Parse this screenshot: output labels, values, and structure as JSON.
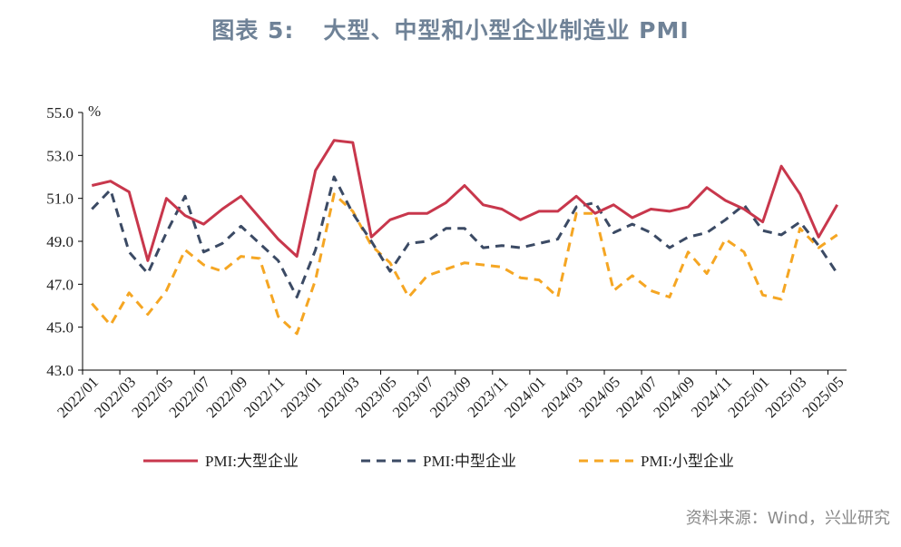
{
  "title_prefix": "图表 5:",
  "title_main": "大型、中型和小型企业制造业 PMI",
  "source": "资料来源：Wind，兴业研究",
  "chart_data": {
    "type": "line",
    "ylabel": "%",
    "ylim": [
      43.0,
      55.0
    ],
    "yticks": [
      "43.0",
      "45.0",
      "47.0",
      "49.0",
      "51.0",
      "53.0",
      "55.0"
    ],
    "x": [
      "2022/01",
      "2022/02",
      "2022/03",
      "2022/04",
      "2022/05",
      "2022/06",
      "2022/07",
      "2022/08",
      "2022/09",
      "2022/10",
      "2022/11",
      "2022/12",
      "2023/01",
      "2023/02",
      "2023/03",
      "2023/04",
      "2023/05",
      "2023/06",
      "2023/07",
      "2023/08",
      "2023/09",
      "2023/10",
      "2023/11",
      "2023/12",
      "2024/01",
      "2024/02",
      "2024/03",
      "2024/04",
      "2024/05",
      "2024/06",
      "2024/07",
      "2024/08",
      "2024/09",
      "2024/10",
      "2024/11",
      "2024/12",
      "2025/01",
      "2025/02",
      "2025/03",
      "2025/04",
      "2025/05"
    ],
    "xtick_labels": [
      "2022/01",
      "2022/03",
      "2022/05",
      "2022/07",
      "2022/09",
      "2022/11",
      "2023/01",
      "2023/03",
      "2023/05",
      "2023/07",
      "2023/09",
      "2023/11",
      "2024/01",
      "2024/03",
      "2024/05",
      "2024/07",
      "2024/09",
      "2024/11",
      "2025/01",
      "2025/03",
      "2025/05"
    ],
    "legend_position": "bottom",
    "series": [
      {
        "name": "PMI:大型企业",
        "color": "#c8374c",
        "dash": "solid",
        "values": [
          51.6,
          51.8,
          51.3,
          48.1,
          51.0,
          50.2,
          49.8,
          50.5,
          51.1,
          50.1,
          49.1,
          48.3,
          52.3,
          53.7,
          53.6,
          49.2,
          50.0,
          50.3,
          50.3,
          50.8,
          51.6,
          50.7,
          50.5,
          50.0,
          50.4,
          50.4,
          51.1,
          50.3,
          50.7,
          50.1,
          50.5,
          50.4,
          50.6,
          51.5,
          50.9,
          50.5,
          49.9,
          52.5,
          51.2,
          49.2,
          50.7
        ]
      },
      {
        "name": "PMI:中型企业",
        "color": "#3b4a64",
        "dash": "dashed",
        "values": [
          50.5,
          51.4,
          48.5,
          47.5,
          49.4,
          51.1,
          48.5,
          48.9,
          49.7,
          48.9,
          48.1,
          46.4,
          48.6,
          52.0,
          50.3,
          49.0,
          47.6,
          48.9,
          49.0,
          49.6,
          49.6,
          48.7,
          48.8,
          48.7,
          48.9,
          49.1,
          50.6,
          50.8,
          49.4,
          49.8,
          49.4,
          48.7,
          49.2,
          49.4,
          50.0,
          50.7,
          49.5,
          49.3,
          49.9,
          48.8,
          47.5
        ]
      },
      {
        "name": "PMI:小型企业",
        "color": "#f5a623",
        "dash": "dashed",
        "values": [
          46.1,
          45.1,
          46.6,
          45.6,
          46.7,
          48.6,
          47.9,
          47.6,
          48.3,
          48.2,
          45.5,
          44.7,
          47.2,
          51.2,
          50.4,
          48.8,
          48.0,
          46.4,
          47.4,
          47.7,
          48.0,
          47.9,
          47.8,
          47.3,
          47.2,
          46.4,
          50.3,
          50.3,
          46.7,
          47.4,
          46.7,
          46.4,
          48.5,
          47.5,
          49.1,
          48.5,
          46.5,
          46.3,
          49.6,
          48.7,
          49.3
        ]
      }
    ]
  }
}
